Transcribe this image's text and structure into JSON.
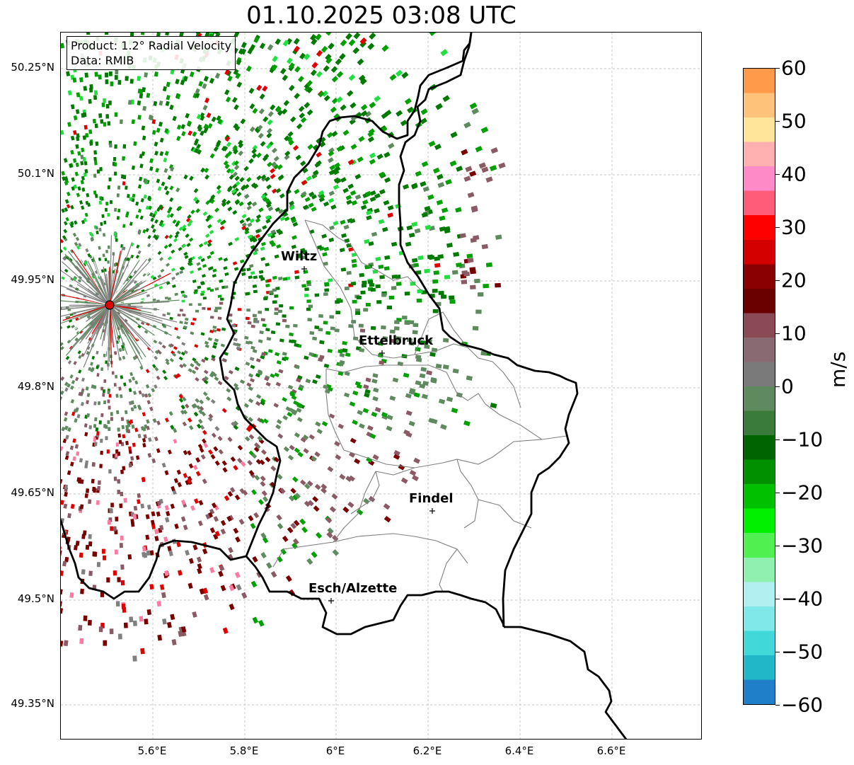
{
  "title": "01.10.2025 03:08 UTC",
  "info": {
    "product": "Product: 1.2° Radial Velocity",
    "source": "Data: RMIB"
  },
  "axes": {
    "lat_ticks": [
      "50.25°N",
      "50.1°N",
      "49.95°N",
      "49.8°N",
      "49.65°N",
      "49.5°N",
      "49.35°N"
    ],
    "lon_ticks": [
      "5.6°E",
      "5.8°E",
      "6°E",
      "6.2°E",
      "6.4°E",
      "6.6°E"
    ]
  },
  "colorbar": {
    "label": "m/s",
    "ticks": [
      "60",
      "50",
      "40",
      "30",
      "20",
      "10",
      "0",
      "−10",
      "−20",
      "−30",
      "−40",
      "−50",
      "−60"
    ],
    "range": [
      -60,
      60
    ],
    "colors": [
      "#ff9a4a",
      "#ffc27a",
      "#ffe59a",
      "#ffb0b0",
      "#ff8ac8",
      "#ff5c7a",
      "#ff0000",
      "#d40000",
      "#8a0000",
      "#6a0000",
      "#8a4a55",
      "#8a6a72",
      "#7a7a7a",
      "#5f8a5f",
      "#3a7a3a",
      "#006400",
      "#009000",
      "#00c000",
      "#00f000",
      "#50f050",
      "#90f0b0",
      "#b0f0f0",
      "#80e8e8",
      "#40d8d8",
      "#20b8c8",
      "#1f7fc8"
    ]
  },
  "cities": [
    {
      "name": "Wiltz"
    },
    {
      "name": "Ettelbruck"
    },
    {
      "name": "Findel"
    },
    {
      "name": "Esch/Alzette"
    }
  ],
  "radar_colors": {
    "green_dark": "#007a00",
    "green": "#00a000",
    "green_light": "#20e040",
    "gray_green": "#5f8a5f",
    "gray": "#808080",
    "mauve": "#8a5a65",
    "dark_red": "#7a0000",
    "red": "#e00000",
    "pink": "#ff7aa0"
  }
}
